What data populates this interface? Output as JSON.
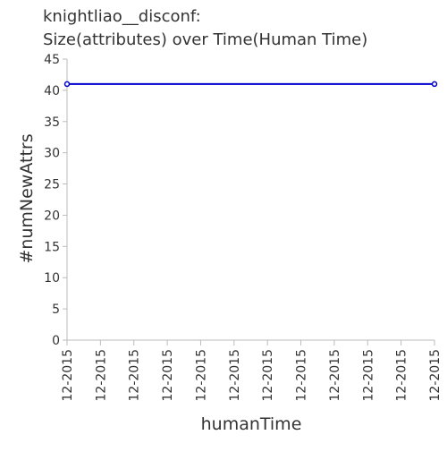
{
  "chart_data": {
    "type": "line",
    "title_line1": "knightliao__disconf:",
    "title_line2": "Size(attributes) over Time(Human Time)",
    "xlabel": "humanTime",
    "ylabel": "#numNewAttrs",
    "ylim": [
      0,
      45
    ],
    "yticks": [
      0,
      5,
      10,
      15,
      20,
      25,
      30,
      35,
      40,
      45
    ],
    "xtick_labels": [
      "12-2015",
      "12-2015",
      "12-2015",
      "12-2015",
      "12-2015",
      "12-2015",
      "12-2015",
      "12-2015",
      "12-2015",
      "12-2015",
      "12-2015",
      "12-2015"
    ],
    "series": [
      {
        "values": [
          41,
          41
        ]
      }
    ],
    "grid": false,
    "colors": {
      "line": "#0000cc",
      "axis": "#bbbbbb"
    }
  }
}
